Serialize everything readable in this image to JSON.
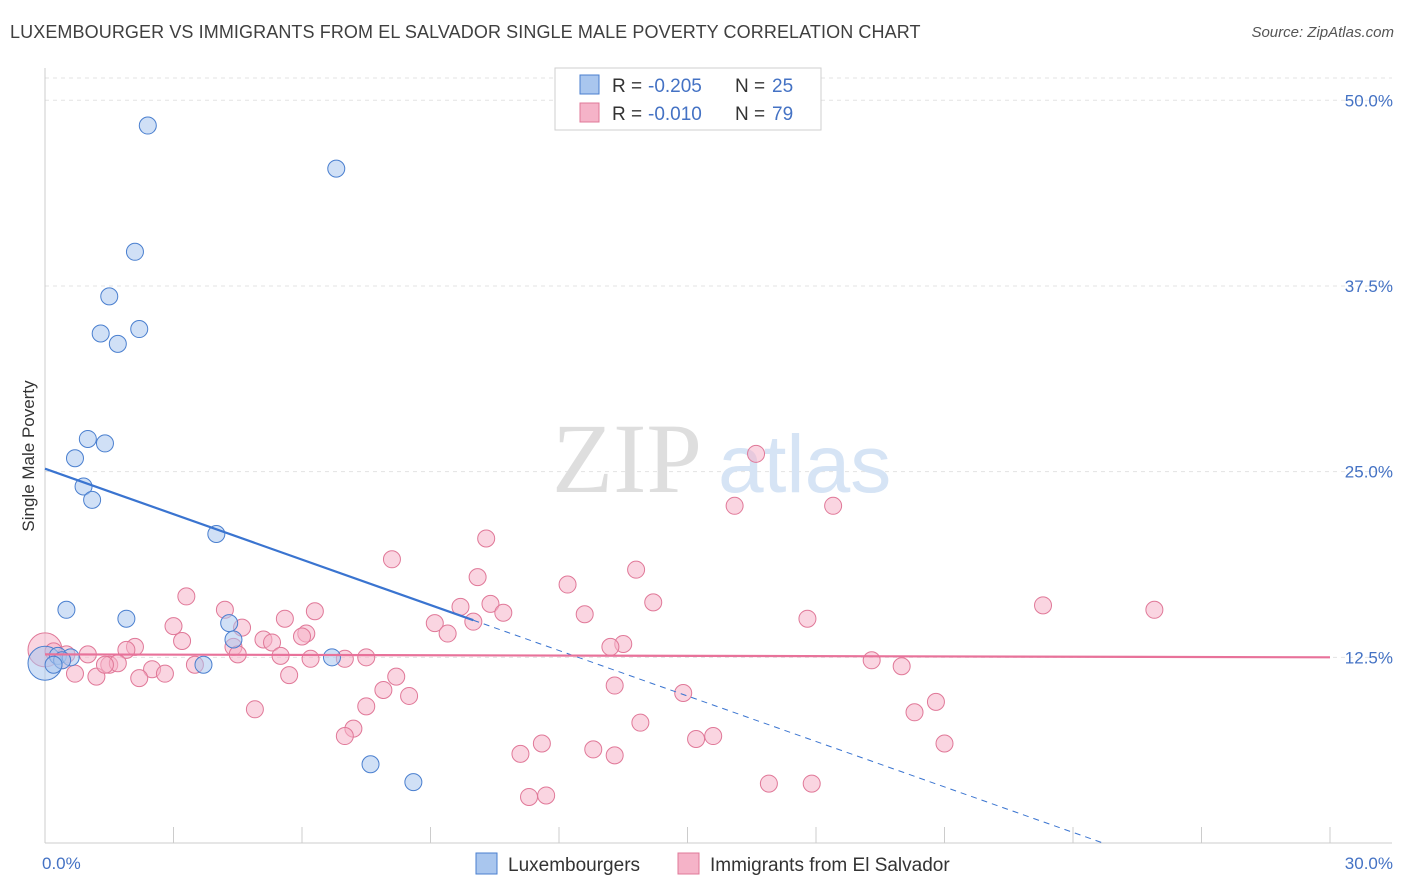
{
  "header": {
    "title": "LUXEMBOURGER VS IMMIGRANTS FROM EL SALVADOR SINGLE MALE POVERTY CORRELATION CHART",
    "source": "Source: ZipAtlas.com"
  },
  "watermark": {
    "zip": "ZIP",
    "atlas": "atlas"
  },
  "colors": {
    "blue_fill": "#a9c6ee",
    "blue_stroke": "#4a7fcf",
    "blue_line": "#3a74d0",
    "pink_fill": "#f5b3c8",
    "pink_stroke": "#e07898",
    "pink_line": "#e8729a",
    "tick_text": "#4472c4"
  },
  "legend": {
    "rows": [
      {
        "r_label": "R =",
        "r_value": "-0.205",
        "n_label": "N =",
        "n_value": "25"
      },
      {
        "r_label": "R =",
        "r_value": "-0.010",
        "n_label": "N =",
        "n_value": "79"
      }
    ]
  },
  "chart_data": {
    "type": "scatter",
    "title": "LUXEMBOURGER VS IMMIGRANTS FROM EL SALVADOR SINGLE MALE POVERTY CORRELATION CHART",
    "xlabel": "",
    "ylabel": "Single Male Poverty",
    "xlim": [
      0,
      30
    ],
    "ylim": [
      0,
      51.5
    ],
    "x_tick_labels": [
      "0.0%",
      "30.0%"
    ],
    "y_ticks": [
      12.5,
      25.0,
      37.5,
      50.0
    ],
    "y_tick_labels": [
      "12.5%",
      "25.0%",
      "37.5%",
      "50.0%"
    ],
    "grid": true,
    "series": [
      {
        "name": "Luxembourgers",
        "points": [
          [
            2.4,
            48.3
          ],
          [
            6.8,
            45.4
          ],
          [
            2.1,
            39.8
          ],
          [
            1.5,
            36.8
          ],
          [
            2.2,
            34.6
          ],
          [
            1.3,
            34.3
          ],
          [
            1.7,
            33.6
          ],
          [
            1.0,
            27.2
          ],
          [
            1.4,
            26.9
          ],
          [
            0.7,
            25.9
          ],
          [
            0.9,
            24.0
          ],
          [
            1.1,
            23.1
          ],
          [
            4.0,
            20.8
          ],
          [
            0.5,
            15.7
          ],
          [
            1.9,
            15.1
          ],
          [
            4.3,
            14.8
          ],
          [
            4.4,
            13.7
          ],
          [
            0.3,
            12.6
          ],
          [
            0.6,
            12.5
          ],
          [
            0.4,
            12.3
          ],
          [
            0.2,
            12.0
          ],
          [
            3.7,
            12.0
          ],
          [
            6.7,
            12.5
          ],
          [
            7.6,
            5.3
          ],
          [
            8.6,
            4.1
          ]
        ],
        "large_point": [
          0.0,
          12.1
        ],
        "trend": {
          "x0": 0.0,
          "y0": 25.2,
          "x1_solid": 10.0,
          "x1_dashed": 24.7,
          "y1_dashed": 0.0
        }
      },
      {
        "name": "Immigrants from El Salvador",
        "points": [
          [
            16.6,
            26.2
          ],
          [
            16.1,
            22.7
          ],
          [
            18.4,
            22.7
          ],
          [
            10.3,
            20.5
          ],
          [
            8.1,
            19.1
          ],
          [
            13.8,
            18.4
          ],
          [
            10.1,
            17.9
          ],
          [
            12.2,
            17.4
          ],
          [
            3.3,
            16.6
          ],
          [
            10.4,
            16.1
          ],
          [
            9.7,
            15.9
          ],
          [
            14.2,
            16.2
          ],
          [
            23.3,
            16.0
          ],
          [
            25.9,
            15.7
          ],
          [
            4.2,
            15.7
          ],
          [
            6.3,
            15.6
          ],
          [
            10.7,
            15.5
          ],
          [
            12.6,
            15.4
          ],
          [
            5.6,
            15.1
          ],
          [
            9.1,
            14.8
          ],
          [
            10.0,
            14.9
          ],
          [
            17.8,
            15.1
          ],
          [
            3.0,
            14.6
          ],
          [
            4.6,
            14.5
          ],
          [
            6.1,
            14.1
          ],
          [
            9.4,
            14.1
          ],
          [
            3.2,
            13.6
          ],
          [
            5.1,
            13.7
          ],
          [
            5.3,
            13.5
          ],
          [
            2.1,
            13.2
          ],
          [
            1.9,
            13.0
          ],
          [
            4.4,
            13.2
          ],
          [
            6.0,
            13.9
          ],
          [
            13.5,
            13.4
          ],
          [
            13.2,
            13.2
          ],
          [
            0.5,
            12.7
          ],
          [
            1.0,
            12.7
          ],
          [
            4.5,
            12.7
          ],
          [
            5.5,
            12.6
          ],
          [
            6.2,
            12.4
          ],
          [
            7.0,
            12.4
          ],
          [
            7.5,
            12.5
          ],
          [
            19.3,
            12.3
          ],
          [
            20.0,
            11.9
          ],
          [
            1.5,
            12.0
          ],
          [
            1.7,
            12.1
          ],
          [
            2.5,
            11.7
          ],
          [
            3.5,
            12.0
          ],
          [
            0.7,
            11.4
          ],
          [
            1.2,
            11.2
          ],
          [
            2.2,
            11.1
          ],
          [
            2.8,
            11.4
          ],
          [
            5.7,
            11.3
          ],
          [
            8.2,
            11.2
          ],
          [
            7.9,
            10.3
          ],
          [
            8.5,
            9.9
          ],
          [
            13.3,
            10.6
          ],
          [
            14.9,
            10.1
          ],
          [
            20.8,
            9.5
          ],
          [
            4.9,
            9.0
          ],
          [
            7.5,
            9.2
          ],
          [
            20.3,
            8.8
          ],
          [
            7.2,
            7.7
          ],
          [
            13.9,
            8.1
          ],
          [
            7.0,
            7.2
          ],
          [
            15.2,
            7.0
          ],
          [
            15.6,
            7.2
          ],
          [
            21.0,
            6.7
          ],
          [
            11.6,
            6.7
          ],
          [
            12.8,
            6.3
          ],
          [
            11.1,
            6.0
          ],
          [
            13.3,
            5.9
          ],
          [
            16.9,
            4.0
          ],
          [
            17.9,
            4.0
          ],
          [
            11.3,
            3.1
          ],
          [
            11.7,
            3.2
          ],
          [
            0.2,
            12.9
          ],
          [
            0.4,
            12.3
          ],
          [
            1.4,
            12.0
          ]
        ],
        "large_point": [
          0.0,
          13.0
        ],
        "trend": {
          "x0": 0.0,
          "y0": 12.7,
          "x1": 30.0,
          "y1": 12.5
        }
      }
    ]
  },
  "bottom_legend": {
    "items": [
      {
        "label": "Luxembourgers"
      },
      {
        "label": "Immigrants from El Salvador"
      }
    ]
  }
}
